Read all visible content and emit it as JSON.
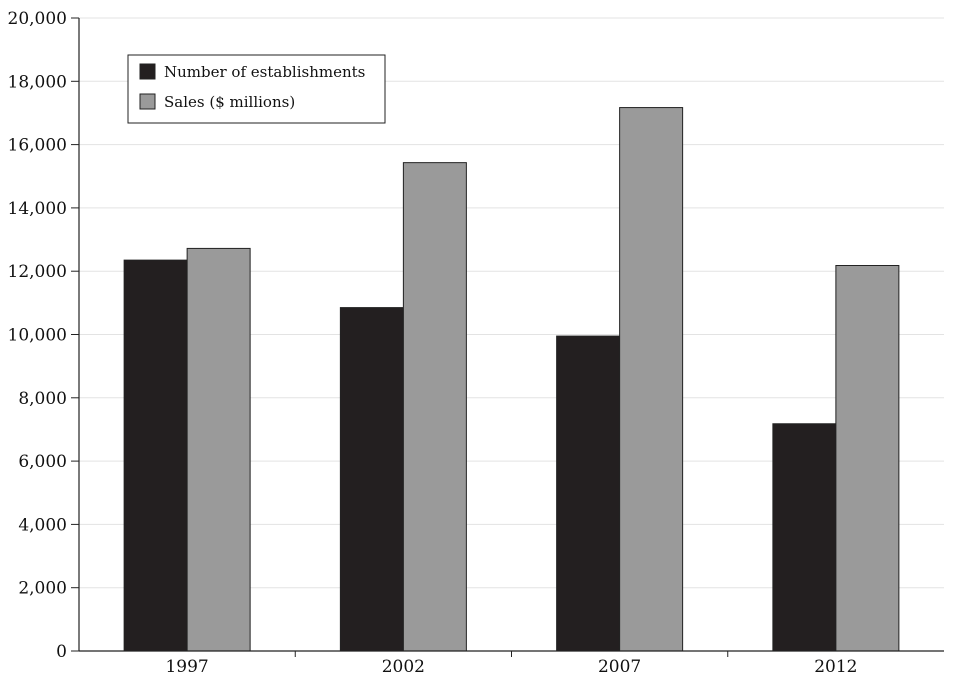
{
  "chart_data": {
    "type": "bar",
    "categories": [
      "1997",
      "2002",
      "2007",
      "2012"
    ],
    "series": [
      {
        "name": "Number of establishments",
        "color": "#231f20",
        "values": [
          12350,
          10850,
          9950,
          7180
        ]
      },
      {
        "name": "Sales ($ millions)",
        "color": "#9a9a9a",
        "values": [
          12720,
          15430,
          17170,
          12180
        ]
      }
    ],
    "y_ticks": [
      "0",
      "2,000",
      "4,000",
      "6,000",
      "8,000",
      "10,000",
      "12,000",
      "14,000",
      "16,000",
      "18,000",
      "20,000"
    ],
    "ylim": [
      0,
      20000
    ],
    "grid": true,
    "legend_position": "top-left",
    "title": "",
    "xlabel": "",
    "ylabel": ""
  }
}
